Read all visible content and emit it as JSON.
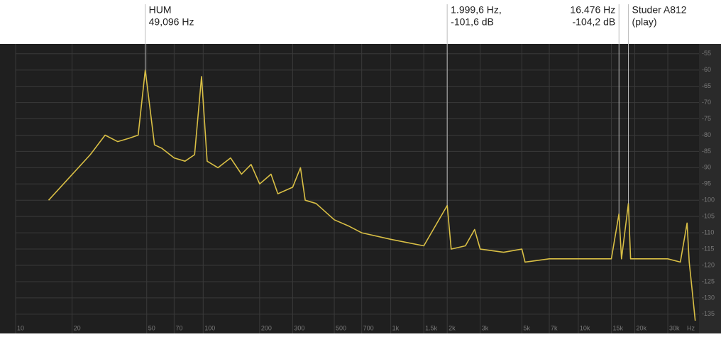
{
  "chart_data": {
    "type": "line",
    "x_scale": "log",
    "x_label": "Hz",
    "x": [
      15,
      25,
      30,
      35,
      40,
      45,
      49.096,
      55,
      60,
      70,
      80,
      90,
      98,
      105,
      120,
      140,
      160,
      180,
      200,
      230,
      250,
      300,
      330,
      350,
      400,
      500,
      600,
      700,
      1000,
      1500,
      1999.6,
      2100,
      2500,
      2800,
      3000,
      4000,
      5000,
      5200,
      7000,
      10000,
      15000,
      16476,
      17000,
      18500,
      19000,
      20000,
      25000,
      30000,
      35000,
      38000,
      39000,
      40000,
      42000
    ],
    "values": [
      -100,
      -86,
      -80,
      -82,
      -81,
      -80,
      -60,
      -83,
      -84,
      -87,
      -88,
      -86,
      -62,
      -88,
      -90,
      -87,
      -92,
      -89,
      -95,
      -92,
      -98,
      -96,
      -90,
      -100,
      -101,
      -106,
      -108,
      -110,
      -112,
      -114,
      -101.6,
      -115,
      -114,
      -109,
      -115,
      -116,
      -115,
      -119,
      -118,
      -118,
      -118,
      -104.2,
      -118,
      -101,
      -118,
      -118,
      -118,
      -118,
      -119,
      -107,
      -119,
      -125,
      -137
    ],
    "color": "#d9bf45",
    "xlim": [
      10,
      44000
    ],
    "ylim": [
      -137,
      -52
    ],
    "xticks": [
      10,
      20,
      50,
      70,
      100,
      200,
      300,
      500,
      700,
      {
        "value": 1000,
        "label": "1k"
      },
      {
        "value": 1500,
        "label": "1.5k"
      },
      {
        "value": 2000,
        "label": "2k"
      },
      {
        "value": 3000,
        "label": "3k"
      },
      {
        "value": 5000,
        "label": "5k"
      },
      {
        "value": 7000,
        "label": "7k"
      },
      {
        "value": 10000,
        "label": "10k"
      },
      {
        "value": 15000,
        "label": "15k"
      },
      {
        "value": 20000,
        "label": "20k"
      },
      {
        "value": 30000,
        "label": "30k"
      }
    ],
    "yticks": [
      -55,
      -60,
      -65,
      -70,
      -75,
      -80,
      -85,
      -90,
      -95,
      -100,
      -105,
      -110,
      -115,
      -120,
      -125,
      -130,
      -135
    ],
    "grid": true,
    "annotations": [
      {
        "lines": [
          "HUM",
          "49,096 Hz"
        ],
        "x": 49.096,
        "y": -60,
        "align": "left"
      },
      {
        "lines": [
          "1.999,6 Hz,",
          "-101,6 dB"
        ],
        "x": 1999.6,
        "y": -101.6,
        "align": "left"
      },
      {
        "lines": [
          "16.476 Hz",
          "-104,2 dB"
        ],
        "x": 16476,
        "y": -104.2,
        "align": "right"
      },
      {
        "lines": [
          "Studer A812",
          "(play)"
        ],
        "x": 18500,
        "y": -101,
        "align": "left"
      }
    ]
  }
}
